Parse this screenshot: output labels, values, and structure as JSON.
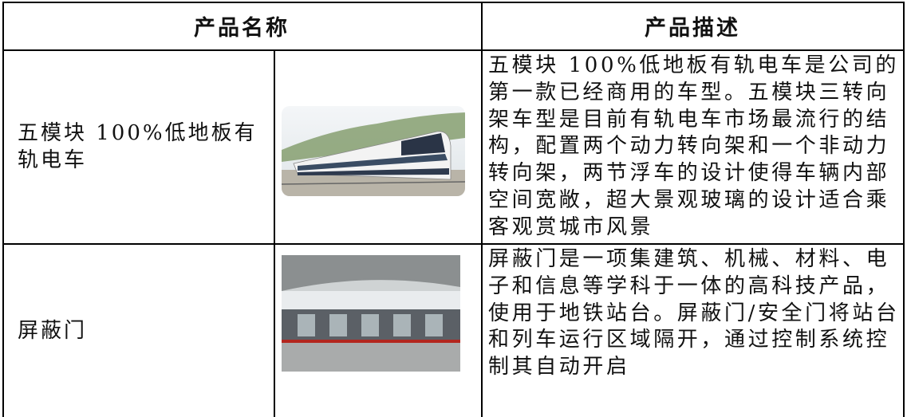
{
  "table": {
    "header": [
      "产品名称",
      "产品描述"
    ],
    "rows": [
      [
        "五模块 100%低地板有轨电车",
        "五模块 100%低地板有轨电车是公司的第一款已经商用的车型。五模块三转向架车型是目前有轨电车市场最流行的结构，配置两个动力转向架和一个非动力转向架，两节浮车的设计使得车辆内部空间宽敞，超大景观玻璃的设计适合乘客观赏城市风景"
      ],
      [
        "屏蔽门",
        "屏蔽门是一项集建筑、机械、材料、电子和信息等学科于一体的高科技产品，使用于地铁站台。屏蔽门/安全门将站台和列车运行区域隔开，通过控制系统控制其自动开启"
      ]
    ]
  }
}
